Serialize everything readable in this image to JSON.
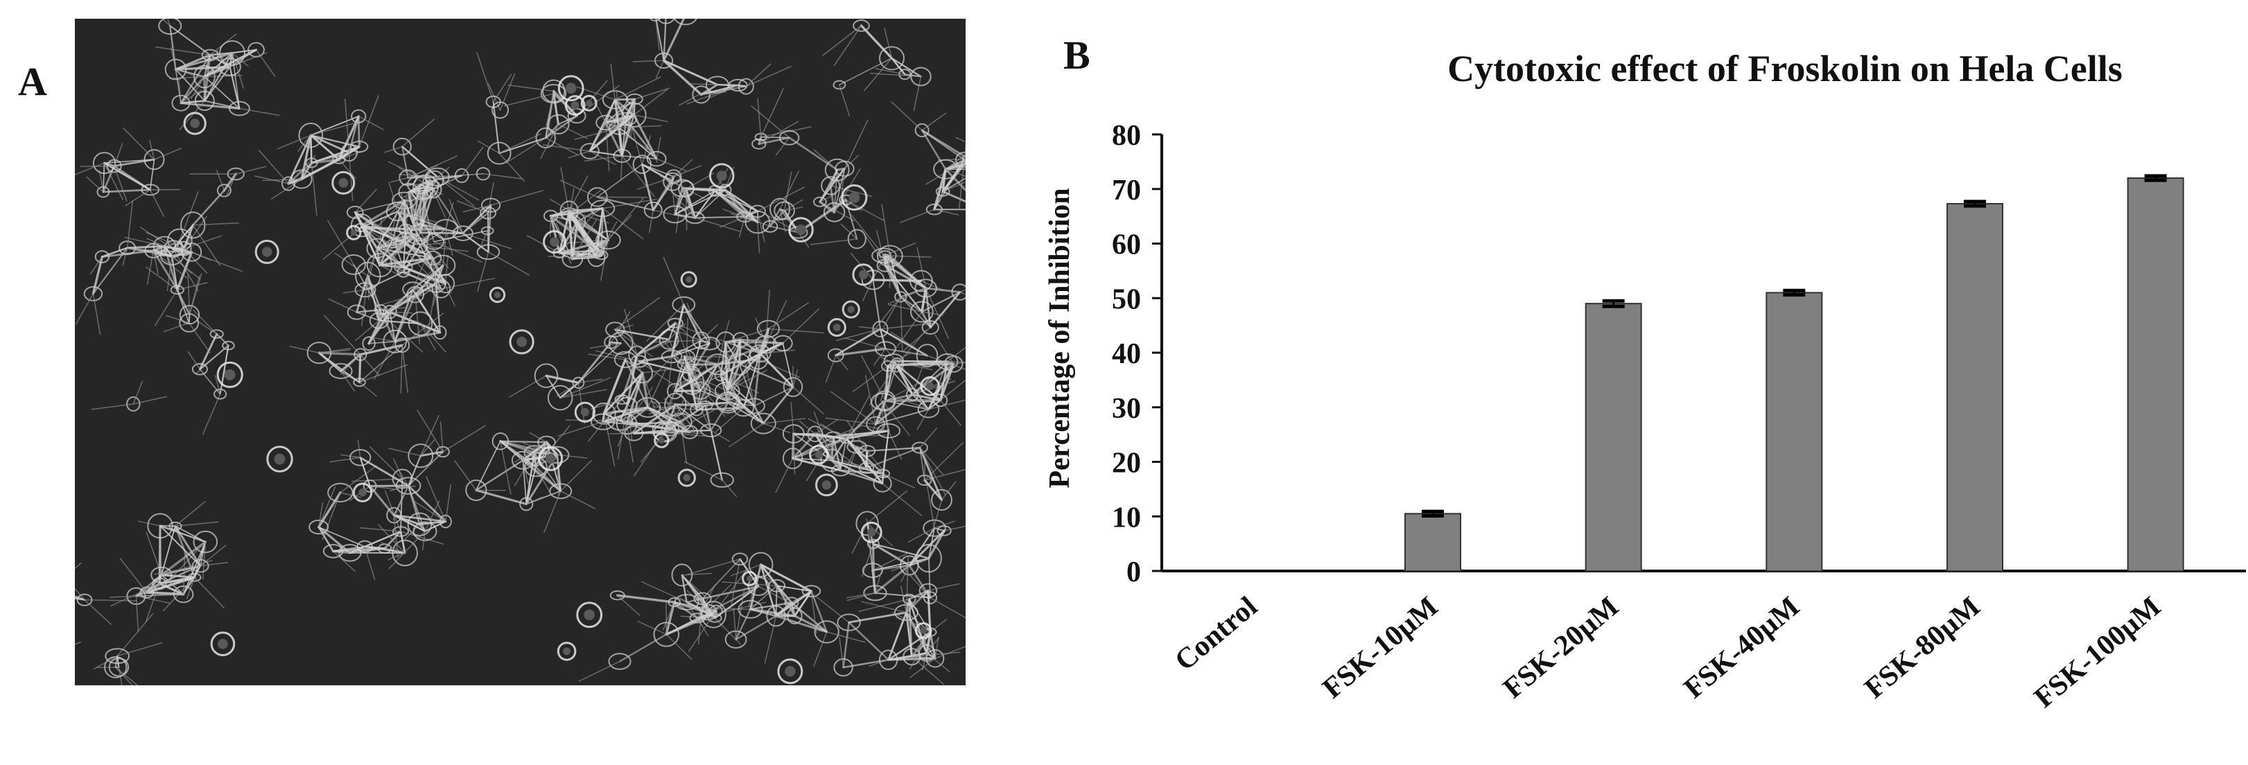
{
  "panels": {
    "a": {
      "label": "A"
    },
    "b": {
      "label": "B"
    }
  },
  "colors": {
    "bar_fill": "#808080",
    "bar_stroke": "#333333",
    "axis": "#111111",
    "micrograph_bg": "#262626",
    "cell_stroke": "#cfcfcf"
  },
  "chart_data": {
    "type": "bar",
    "title": "Cytotoxic effect of Froskolin on Hela Cells",
    "xlabel": "",
    "ylabel": "Percentage of Inhibition",
    "ylim": [
      0,
      80
    ],
    "yticks": [
      0,
      10,
      20,
      30,
      40,
      50,
      60,
      70,
      80
    ],
    "categories": [
      "Control",
      "FSK-10µM",
      "FSK-20µM",
      "FSK-40µM",
      "FSK-80µM",
      "FSK-100µM"
    ],
    "values": [
      0,
      10.5,
      49,
      51,
      67.3,
      72
    ],
    "errors": [
      0,
      0.4,
      0.5,
      0.4,
      0.4,
      0.4
    ],
    "grid": false,
    "legend": "none"
  }
}
